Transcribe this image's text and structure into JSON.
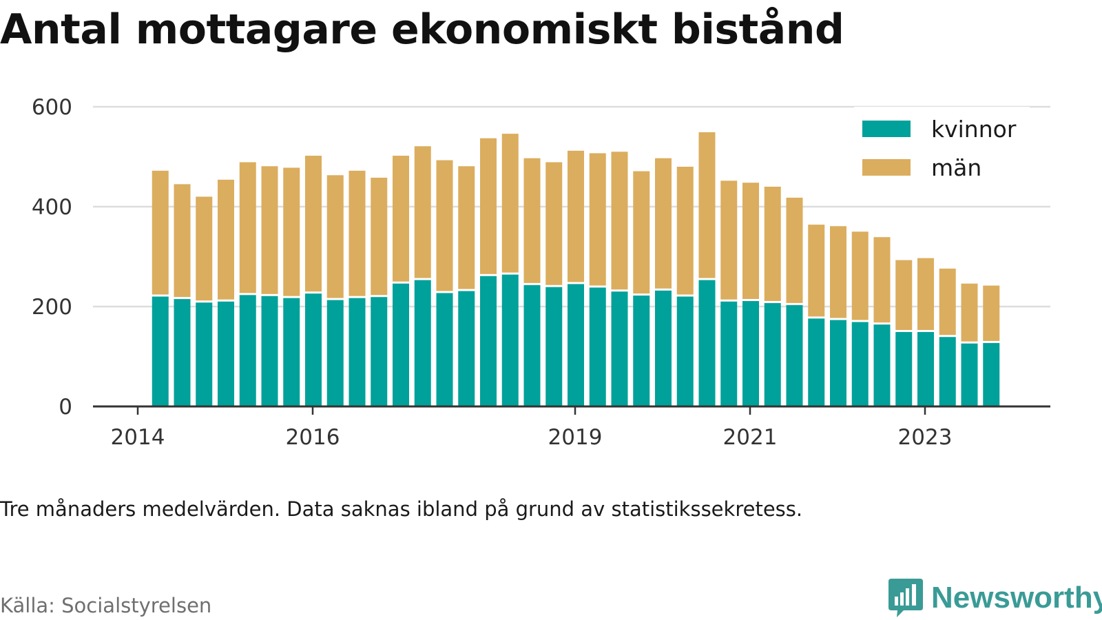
{
  "title": "Antal mottagare ekonomiskt bistånd",
  "note": "Tre månaders medelvärden. Data saknas ibland på grund av statistikssekretess.",
  "source": "Källa: Socialstyrelsen",
  "brand": {
    "name": "Newsworthy",
    "icon": "newsworthy-logo-icon",
    "color": "#3a9b96"
  },
  "colors": {
    "kvinnor": "#00a19a",
    "man": "#dbad5e",
    "grid": "#dddddd",
    "axis": "#333333"
  },
  "chart_data": {
    "type": "bar",
    "stacked": true,
    "ylim": [
      0,
      600
    ],
    "yticks": [
      "0",
      "200",
      "400",
      "600"
    ],
    "xticks": [
      "2014",
      "2016",
      "2019",
      "2021",
      "2023"
    ],
    "grid": "horizontal",
    "legend_position": "top-right",
    "categories": [
      "2014-Q2",
      "2014-Q3",
      "2014-Q4",
      "2015-Q1",
      "2015-Q2",
      "2015-Q3",
      "2015-Q4",
      "2016-Q1",
      "2016-Q2",
      "2016-Q3",
      "2016-Q4",
      "2017-Q1",
      "2017-Q2",
      "2017-Q3",
      "2017-Q4",
      "2018-Q1",
      "2018-Q2",
      "2018-Q3",
      "2018-Q4",
      "2019-Q1",
      "2019-Q2",
      "2019-Q3",
      "2019-Q4",
      "2020-Q1",
      "2020-Q2",
      "2020-Q3",
      "2020-Q4",
      "2021-Q1",
      "2021-Q2",
      "2021-Q3",
      "2021-Q4",
      "2022-Q1",
      "2022-Q2",
      "2022-Q3",
      "2022-Q4",
      "2023-Q1",
      "2023-Q2",
      "2023-Q3",
      "2023-Q4"
    ],
    "series": [
      {
        "name": "kvinnor",
        "values": [
          220,
          215,
          208,
          210,
          223,
          221,
          217,
          226,
          213,
          217,
          219,
          246,
          253,
          227,
          231,
          261,
          264,
          243,
          239,
          245,
          238,
          230,
          222,
          232,
          220,
          253,
          210,
          211,
          207,
          203,
          176,
          173,
          169,
          164,
          149,
          149,
          139,
          126,
          127
        ]
      },
      {
        "name": "män",
        "values": [
          252,
          230,
          212,
          244,
          266,
          260,
          261,
          276,
          250,
          255,
          239,
          256,
          268,
          266,
          250,
          276,
          282,
          254,
          250,
          267,
          269,
          280,
          249,
          265,
          260,
          296,
          242,
          237,
          233,
          215,
          188,
          188,
          181,
          175,
          144,
          148,
          137,
          120,
          115
        ]
      }
    ]
  }
}
